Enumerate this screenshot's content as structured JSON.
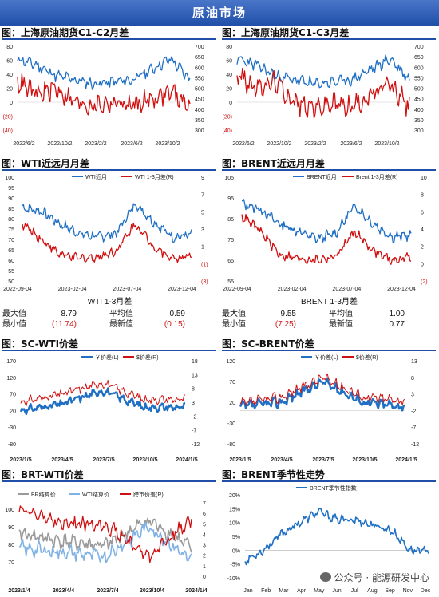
{
  "banner": "原油市场",
  "charts": {
    "c1": {
      "title": "图：上海原油期货C1-C2月差",
      "x_ticks": [
        "2022/6/2",
        "2022/10/2",
        "2023/2/2",
        "2023/6/2",
        "2023/10/2"
      ],
      "left_ticks": [
        "80",
        "60",
        "40",
        "20",
        "0",
        "(20)",
        "(40)"
      ],
      "right_ticks": [
        "700",
        "650",
        "600",
        "550",
        "500",
        "450",
        "400",
        "350",
        "300"
      ]
    },
    "c2": {
      "title": "图：上海原油期货C1-C3月差",
      "x_ticks": [
        "2022/6/2",
        "2022/10/2",
        "2023/2/2",
        "2023/6/2",
        "2023/10/2"
      ],
      "left_ticks": [
        "80",
        "60",
        "40",
        "20",
        "0",
        "(20)",
        "(40)"
      ],
      "right_ticks": [
        "700",
        "650",
        "600",
        "550",
        "500",
        "450",
        "400",
        "350",
        "300"
      ]
    },
    "c3": {
      "title": "图：WTI近远月月差",
      "legend": [
        "WTI近月",
        "WTI 1-3月差(R)"
      ],
      "x_ticks": [
        "2022-09-04",
        "2023-02-04",
        "2023-07-04",
        "2023-12-04"
      ],
      "left_ticks": [
        "100",
        "95",
        "90",
        "85",
        "80",
        "75",
        "70",
        "65",
        "60",
        "55",
        "50"
      ],
      "right_ticks": [
        "9",
        "7",
        "5",
        "3",
        "1",
        "(1)",
        "(3)"
      ]
    },
    "c4": {
      "title": "图：BRENT近远月月差",
      "legend": [
        "BRENT近月",
        "Brent 1-3月差(R)"
      ],
      "x_ticks": [
        "2022-09-04",
        "2023-02-04",
        "2023-07-04",
        "2023-12-04"
      ],
      "left_ticks": [
        "105",
        "95",
        "85",
        "75",
        "65",
        "55"
      ],
      "right_ticks": [
        "10",
        "8",
        "6",
        "4",
        "2",
        "0",
        "(2)"
      ]
    },
    "c5": {
      "title": "图：SC-WTI价差",
      "legend": [
        "￥价差(L)",
        "$价差(R)"
      ],
      "x_ticks": [
        "2023/1/5",
        "2023/4/5",
        "2023/7/5",
        "2023/10/5",
        "2024/1/5"
      ],
      "left_ticks": [
        "170",
        "120",
        "70",
        "20",
        "-30",
        "-80"
      ],
      "right_ticks": [
        "18",
        "13",
        "8",
        "3",
        "-2",
        "-7",
        "-12"
      ]
    },
    "c6": {
      "title": "图：SC-BRENT价差",
      "legend": [
        "￥价差(L)",
        "$价差(R)"
      ],
      "x_ticks": [
        "2023/1/5",
        "2023/4/5",
        "2023/7/5",
        "2023/10/5",
        "2024/1/5"
      ],
      "left_ticks": [
        "120",
        "70",
        "20",
        "-30",
        "-80"
      ],
      "right_ticks": [
        "13",
        "8",
        "3",
        "-2",
        "-7",
        "-12"
      ]
    },
    "c7": {
      "title": "图：BRT-WTI价差",
      "legend": [
        "BR结算价",
        "WTI结算价",
        "跨市价差(R)"
      ],
      "x_ticks": [
        "2023/1/4",
        "2023/4/4",
        "2023/7/4",
        "2023/10/4",
        "2024/1/4"
      ],
      "left_ticks": [
        "100",
        "90",
        "80",
        "70"
      ],
      "right_ticks": [
        "7",
        "6",
        "5",
        "4",
        "3",
        "2",
        "1",
        "0"
      ]
    },
    "c8": {
      "title": "图：BRENT季节性走势",
      "legend": [
        "BRENT季节性指数"
      ],
      "x_ticks": [
        "Jan",
        "Feb",
        "Mar",
        "Apr",
        "May",
        "Jun",
        "Jul",
        "Aug",
        "Sep",
        "Nov",
        "Dec"
      ],
      "left_ticks": [
        "20%",
        "15%",
        "10%",
        "5%",
        "0%",
        "-5%",
        "-10%"
      ]
    }
  },
  "wti_table": {
    "header": "WTI 1-3月差",
    "max_label": "最大值",
    "max_value": "8.79",
    "avg_label": "平均值",
    "avg_value": "0.59",
    "min_label": "最小值",
    "min_value": "(11.74)",
    "latest_label": "最新值",
    "latest_value": "(0.15)"
  },
  "brent_table": {
    "header": "BRENT 1-3月差",
    "max_label": "最大值",
    "max_value": "9.55",
    "avg_label": "平均值",
    "avg_value": "1.00",
    "min_label": "最小值",
    "min_value": "(7.25)",
    "latest_label": "最新值",
    "latest_value": "0.77"
  },
  "watermark": "公众号 · 能源研发中心",
  "colors": {
    "blue": "#1f6fc4",
    "red": "#d01010",
    "lightblue": "#7fb2e5",
    "gray": "#9a9a9a",
    "banner": "#1f4fa8"
  },
  "chart_data": [
    {
      "type": "line",
      "title": "图：上海原油期货C1-C2月差",
      "x": [
        "2022/6/2",
        "2022/8/2",
        "2022/10/2",
        "2022/12/2",
        "2023/2/2",
        "2023/4/2",
        "2023/6/2",
        "2023/8/2",
        "2023/10/2",
        "2023/12/2"
      ],
      "series": [
        {
          "axis": "right",
          "values": [
            640,
            610,
            560,
            540,
            520,
            530,
            540,
            590,
            640,
            540
          ]
        },
        {
          "axis": "left",
          "values": [
            30,
            10,
            20,
            0,
            -5,
            0,
            -5,
            5,
            15,
            -5
          ]
        }
      ],
      "ylim_left": [
        -40,
        80
      ],
      "ylim_right": [
        300,
        700
      ]
    },
    {
      "type": "line",
      "title": "图：上海原油期货C1-C3月差",
      "x": [
        "2022/6/2",
        "2022/8/2",
        "2022/10/2",
        "2022/12/2",
        "2023/2/2",
        "2023/4/2",
        "2023/6/2",
        "2023/8/2",
        "2023/10/2",
        "2023/12/2"
      ],
      "series": [
        {
          "axis": "right",
          "values": [
            640,
            610,
            560,
            540,
            520,
            530,
            540,
            590,
            640,
            540
          ]
        },
        {
          "axis": "left",
          "values": [
            40,
            20,
            30,
            0,
            -8,
            -2,
            -6,
            10,
            25,
            -8
          ]
        }
      ],
      "ylim_left": [
        -40,
        80
      ],
      "ylim_right": [
        300,
        700
      ]
    },
    {
      "type": "line",
      "title": "图：WTI近远月月差",
      "x": [
        "2022-09-04",
        "2022-11-04",
        "2023-01-04",
        "2023-03-04",
        "2023-05-04",
        "2023-07-04",
        "2023-09-04",
        "2023-11-04",
        "2023-12-04",
        "2024-01-04"
      ],
      "series": [
        {
          "name": "WTI近月",
          "axis": "left",
          "values": [
            88,
            86,
            79,
            74,
            72,
            74,
            90,
            80,
            72,
            73
          ]
        },
        {
          "name": "WTI 1-3月差(R)",
          "axis": "right",
          "values": [
            4,
            2,
            0,
            -0.5,
            -0.3,
            0.5,
            4,
            1,
            -0.5,
            -0.2
          ]
        }
      ],
      "ylim_left": [
        50,
        100
      ],
      "ylim_right": [
        -3,
        9
      ]
    },
    {
      "type": "line",
      "title": "图：BRENT近远月月差",
      "x": [
        "2022-09-04",
        "2022-11-04",
        "2023-01-04",
        "2023-03-04",
        "2023-05-04",
        "2023-07-04",
        "2023-09-04",
        "2023-11-04",
        "2023-12-04",
        "2024-01-04"
      ],
      "series": [
        {
          "name": "BRENT近月",
          "axis": "left",
          "values": [
            95,
            92,
            84,
            80,
            76,
            79,
            94,
            84,
            77,
            78
          ]
        },
        {
          "name": "Brent 1-3月差(R)",
          "axis": "right",
          "values": [
            6,
            4,
            1,
            0.5,
            0.3,
            0.8,
            4,
            1.5,
            0.2,
            0.8
          ]
        }
      ],
      "ylim_left": [
        55,
        105
      ],
      "ylim_right": [
        -2,
        10
      ]
    },
    {
      "type": "line",
      "title": "图：SC-WTI价差",
      "x": [
        "2023/1/5",
        "2023/4/5",
        "2023/7/5",
        "2023/10/5",
        "2024/1/5"
      ],
      "series": [
        {
          "name": "￥价差(L)",
          "axis": "left",
          "values": [
            20,
            40,
            80,
            30,
            30
          ]
        },
        {
          "name": "$价差(R)",
          "axis": "right",
          "values": [
            3,
            6,
            10,
            4,
            4
          ]
        }
      ],
      "ylim_left": [
        -80,
        170
      ],
      "ylim_right": [
        -12,
        18
      ]
    },
    {
      "type": "line",
      "title": "图：SC-BRENT价差",
      "x": [
        "2023/1/5",
        "2023/4/5",
        "2023/7/5",
        "2023/10/5",
        "2024/1/5"
      ],
      "series": [
        {
          "name": "￥价差(L)",
          "axis": "left",
          "values": [
            10,
            20,
            70,
            20,
            10
          ]
        },
        {
          "name": "$价差(R)",
          "axis": "right",
          "values": [
            0,
            2,
            8,
            2,
            1
          ]
        }
      ],
      "ylim_left": [
        -80,
        120
      ],
      "ylim_right": [
        -12,
        13
      ]
    },
    {
      "type": "line",
      "title": "图：BRT-WTI价差",
      "x": [
        "2023/1/4",
        "2023/4/4",
        "2023/7/4",
        "2023/10/4",
        "2024/1/4"
      ],
      "series": [
        {
          "name": "BR结算价",
          "axis": "left",
          "values": [
            86,
            82,
            80,
            92,
            79
          ]
        },
        {
          "name": "WTI结算价",
          "axis": "left",
          "values": [
            79,
            77,
            75,
            89,
            73
          ]
        },
        {
          "name": "跨市价差(R)",
          "axis": "right",
          "values": [
            6.5,
            5,
            5,
            2,
            5.5
          ]
        }
      ],
      "ylim_left": [
        65,
        100
      ],
      "ylim_right": [
        0,
        7
      ]
    },
    {
      "type": "line",
      "title": "图：BRENT季节性走势",
      "x": [
        "Jan",
        "Feb",
        "Mar",
        "Apr",
        "May",
        "Jun",
        "Jul",
        "Aug",
        "Sep",
        "Nov",
        "Dec"
      ],
      "series": [
        {
          "name": "BRENT季节性指数",
          "values": [
            -4,
            0,
            6,
            10,
            14,
            11,
            11,
            9,
            7,
            0,
            0
          ]
        }
      ],
      "ylim": [
        -10,
        20
      ]
    }
  ]
}
